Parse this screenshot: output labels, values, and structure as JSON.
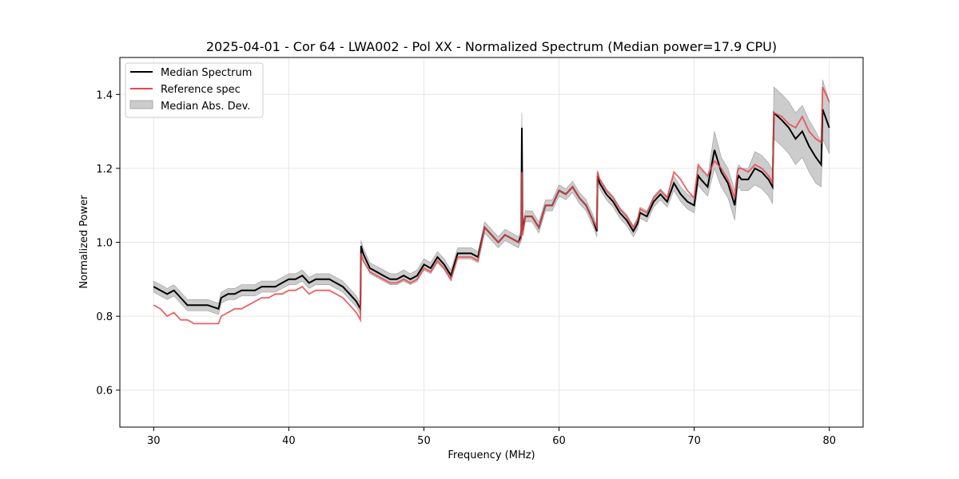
{
  "chart_data": {
    "type": "line",
    "title": "2025-04-01 - Cor 64 - LWA002 - Pol XX - Normalized Spectrum (Median power=17.9 CPU)",
    "xlabel": "Frequency (MHz)",
    "ylabel": "Normalized Power",
    "xlim": [
      27.5,
      82.5
    ],
    "ylim": [
      0.5,
      1.5
    ],
    "xticks": [
      30,
      40,
      50,
      60,
      70,
      80
    ],
    "yticks": [
      0.6,
      0.8,
      1.0,
      1.2,
      1.4
    ],
    "grid": true,
    "legend_position": "top-left",
    "legend": [
      "Median Spectrum",
      "Reference spec",
      "Median Abs. Dev."
    ],
    "colors": {
      "median": "#000000",
      "reference": "#e8474a",
      "mad_fill": "#b0b0b0",
      "overlap": "#7a0000"
    },
    "series": [
      {
        "name": "Median Spectrum",
        "x": [
          30.0,
          30.5,
          31.0,
          31.5,
          32.0,
          32.5,
          33.0,
          33.5,
          34.0,
          34.8,
          35.0,
          35.5,
          36.0,
          36.5,
          37.0,
          37.5,
          38.0,
          38.5,
          39.0,
          39.5,
          40.0,
          40.5,
          41.0,
          41.5,
          42.0,
          42.5,
          43.0,
          43.5,
          44.0,
          44.5,
          45.0,
          45.3,
          45.35,
          45.5,
          46.0,
          46.5,
          47.0,
          47.5,
          48.0,
          48.5,
          49.0,
          49.5,
          50.0,
          50.5,
          51.0,
          51.5,
          52.0,
          52.5,
          53.0,
          53.5,
          54.0,
          54.5,
          55.0,
          55.5,
          56.0,
          56.5,
          57.0,
          57.2,
          57.25,
          57.3,
          57.5,
          58.0,
          58.5,
          59.0,
          59.5,
          60.0,
          60.5,
          61.0,
          61.5,
          62.0,
          62.5,
          62.8,
          62.85,
          63.0,
          63.5,
          64.0,
          64.5,
          65.0,
          65.5,
          65.8,
          66.0,
          66.5,
          67.0,
          67.5,
          68.0,
          68.5,
          69.0,
          69.5,
          70.0,
          70.3,
          70.5,
          71.0,
          71.5,
          72.0,
          72.5,
          73.0,
          73.2,
          73.3,
          73.5,
          74.0,
          74.5,
          75.0,
          75.5,
          75.8,
          75.9,
          76.5,
          77.0,
          77.5,
          78.0,
          78.5,
          79.0,
          79.4,
          79.5,
          80.0
        ],
        "values": [
          0.88,
          0.87,
          0.86,
          0.87,
          0.85,
          0.83,
          0.83,
          0.83,
          0.83,
          0.82,
          0.85,
          0.86,
          0.86,
          0.87,
          0.87,
          0.87,
          0.88,
          0.88,
          0.88,
          0.89,
          0.9,
          0.9,
          0.91,
          0.89,
          0.9,
          0.9,
          0.9,
          0.89,
          0.88,
          0.86,
          0.84,
          0.82,
          0.99,
          0.97,
          0.93,
          0.92,
          0.91,
          0.9,
          0.9,
          0.91,
          0.9,
          0.91,
          0.94,
          0.93,
          0.96,
          0.94,
          0.91,
          0.97,
          0.97,
          0.97,
          0.96,
          1.04,
          1.02,
          1.0,
          1.02,
          1.01,
          1.0,
          1.02,
          1.31,
          1.03,
          1.07,
          1.07,
          1.04,
          1.1,
          1.1,
          1.14,
          1.13,
          1.15,
          1.12,
          1.1,
          1.06,
          1.03,
          1.18,
          1.16,
          1.13,
          1.11,
          1.08,
          1.06,
          1.03,
          1.05,
          1.08,
          1.07,
          1.11,
          1.13,
          1.11,
          1.16,
          1.13,
          1.11,
          1.1,
          1.18,
          1.17,
          1.15,
          1.25,
          1.19,
          1.16,
          1.1,
          1.17,
          1.18,
          1.17,
          1.17,
          1.2,
          1.19,
          1.17,
          1.15,
          1.35,
          1.33,
          1.31,
          1.28,
          1.3,
          1.26,
          1.23,
          1.21,
          1.36,
          1.31
        ]
      },
      {
        "name": "Reference spec",
        "x": [
          30.0,
          30.5,
          31.0,
          31.5,
          32.0,
          32.5,
          33.0,
          33.5,
          34.0,
          34.8,
          35.0,
          35.5,
          36.0,
          36.5,
          37.0,
          37.5,
          38.0,
          38.5,
          39.0,
          39.5,
          40.0,
          40.5,
          41.0,
          41.5,
          42.0,
          42.5,
          43.0,
          43.5,
          44.0,
          44.5,
          45.0,
          45.3,
          45.35,
          45.5,
          46.0,
          46.5,
          47.0,
          47.5,
          48.0,
          48.5,
          49.0,
          49.5,
          50.0,
          50.5,
          51.0,
          51.5,
          52.0,
          52.5,
          53.0,
          53.5,
          54.0,
          54.5,
          55.0,
          55.5,
          56.0,
          56.5,
          57.0,
          57.2,
          57.25,
          57.3,
          57.5,
          58.0,
          58.5,
          59.0,
          59.5,
          60.0,
          60.5,
          61.0,
          61.5,
          62.0,
          62.5,
          62.8,
          62.85,
          63.0,
          63.5,
          64.0,
          64.5,
          65.0,
          65.5,
          65.8,
          66.0,
          66.5,
          67.0,
          67.5,
          68.0,
          68.5,
          69.0,
          69.5,
          70.0,
          70.3,
          70.5,
          71.0,
          71.5,
          72.0,
          72.5,
          73.0,
          73.2,
          73.3,
          73.5,
          74.0,
          74.5,
          75.0,
          75.5,
          75.8,
          75.9,
          76.5,
          77.0,
          77.5,
          78.0,
          78.5,
          79.0,
          79.4,
          79.5,
          80.0
        ],
        "values": [
          0.83,
          0.82,
          0.8,
          0.81,
          0.79,
          0.79,
          0.78,
          0.78,
          0.78,
          0.78,
          0.8,
          0.81,
          0.82,
          0.82,
          0.83,
          0.84,
          0.85,
          0.85,
          0.86,
          0.86,
          0.87,
          0.87,
          0.88,
          0.86,
          0.87,
          0.87,
          0.87,
          0.86,
          0.85,
          0.83,
          0.81,
          0.79,
          0.97,
          0.95,
          0.92,
          0.91,
          0.9,
          0.89,
          0.89,
          0.9,
          0.89,
          0.9,
          0.93,
          0.92,
          0.95,
          0.93,
          0.9,
          0.96,
          0.96,
          0.96,
          0.95,
          1.04,
          1.02,
          1.0,
          1.02,
          1.01,
          1.0,
          1.01,
          1.19,
          1.02,
          1.07,
          1.07,
          1.04,
          1.1,
          1.1,
          1.14,
          1.13,
          1.15,
          1.12,
          1.1,
          1.06,
          1.04,
          1.19,
          1.17,
          1.14,
          1.12,
          1.09,
          1.07,
          1.04,
          1.06,
          1.09,
          1.08,
          1.12,
          1.14,
          1.12,
          1.19,
          1.17,
          1.14,
          1.12,
          1.21,
          1.2,
          1.18,
          1.22,
          1.2,
          1.17,
          1.12,
          1.19,
          1.2,
          1.2,
          1.19,
          1.21,
          1.2,
          1.18,
          1.16,
          1.35,
          1.34,
          1.32,
          1.31,
          1.34,
          1.3,
          1.28,
          1.27,
          1.42,
          1.38
        ]
      },
      {
        "name": "Median Abs. Dev.",
        "x": [
          30.0,
          30.5,
          31.0,
          31.5,
          32.0,
          32.5,
          33.0,
          33.5,
          34.0,
          34.8,
          35.0,
          35.5,
          36.0,
          36.5,
          37.0,
          37.5,
          38.0,
          38.5,
          39.0,
          39.5,
          40.0,
          40.5,
          41.0,
          41.5,
          42.0,
          42.5,
          43.0,
          43.5,
          44.0,
          44.5,
          45.0,
          45.3,
          45.35,
          45.5,
          46.0,
          46.5,
          47.0,
          47.5,
          48.0,
          48.5,
          49.0,
          49.5,
          50.0,
          50.5,
          51.0,
          51.5,
          52.0,
          52.5,
          53.0,
          53.5,
          54.0,
          54.5,
          55.0,
          55.5,
          56.0,
          56.5,
          57.0,
          57.2,
          57.25,
          57.3,
          57.5,
          58.0,
          58.5,
          59.0,
          59.5,
          60.0,
          60.5,
          61.0,
          61.5,
          62.0,
          62.5,
          62.8,
          62.85,
          63.0,
          63.5,
          64.0,
          64.5,
          65.0,
          65.5,
          65.8,
          66.0,
          66.5,
          67.0,
          67.5,
          68.0,
          68.5,
          69.0,
          69.5,
          70.0,
          70.3,
          70.5,
          71.0,
          71.5,
          72.0,
          72.5,
          73.0,
          73.2,
          73.3,
          73.5,
          74.0,
          74.5,
          75.0,
          75.5,
          75.8,
          75.9,
          76.5,
          77.0,
          77.5,
          78.0,
          78.5,
          79.0,
          79.4,
          79.5,
          80.0
        ],
        "lower": [
          0.865,
          0.855,
          0.845,
          0.855,
          0.835,
          0.815,
          0.815,
          0.815,
          0.815,
          0.805,
          0.835,
          0.845,
          0.845,
          0.855,
          0.855,
          0.855,
          0.865,
          0.865,
          0.865,
          0.875,
          0.885,
          0.885,
          0.895,
          0.875,
          0.885,
          0.885,
          0.885,
          0.875,
          0.865,
          0.845,
          0.825,
          0.805,
          0.975,
          0.955,
          0.915,
          0.905,
          0.895,
          0.885,
          0.885,
          0.895,
          0.885,
          0.895,
          0.925,
          0.915,
          0.945,
          0.925,
          0.895,
          0.955,
          0.955,
          0.955,
          0.945,
          1.025,
          1.005,
          0.985,
          1.005,
          0.995,
          0.985,
          1.005,
          1.19,
          1.015,
          1.055,
          1.055,
          1.025,
          1.085,
          1.085,
          1.125,
          1.115,
          1.135,
          1.105,
          1.085,
          1.045,
          1.015,
          1.165,
          1.145,
          1.115,
          1.095,
          1.065,
          1.045,
          1.015,
          1.035,
          1.065,
          1.055,
          1.095,
          1.115,
          1.095,
          1.14,
          1.11,
          1.09,
          1.08,
          1.155,
          1.145,
          1.125,
          1.2,
          1.15,
          1.12,
          1.06,
          1.14,
          1.15,
          1.14,
          1.14,
          1.155,
          1.145,
          1.125,
          1.105,
          1.28,
          1.26,
          1.24,
          1.21,
          1.23,
          1.19,
          1.16,
          1.15,
          1.28,
          1.24
        ],
        "upper": [
          0.895,
          0.885,
          0.875,
          0.885,
          0.865,
          0.845,
          0.845,
          0.845,
          0.845,
          0.835,
          0.865,
          0.875,
          0.875,
          0.885,
          0.885,
          0.885,
          0.895,
          0.895,
          0.895,
          0.905,
          0.915,
          0.915,
          0.925,
          0.905,
          0.915,
          0.915,
          0.915,
          0.905,
          0.895,
          0.875,
          0.855,
          0.835,
          1.005,
          0.985,
          0.945,
          0.935,
          0.925,
          0.915,
          0.915,
          0.925,
          0.915,
          0.925,
          0.955,
          0.945,
          0.975,
          0.955,
          0.925,
          0.985,
          0.985,
          0.985,
          0.975,
          1.055,
          1.035,
          1.015,
          1.035,
          1.025,
          1.015,
          1.035,
          1.35,
          1.045,
          1.085,
          1.085,
          1.055,
          1.115,
          1.115,
          1.155,
          1.145,
          1.165,
          1.135,
          1.115,
          1.075,
          1.045,
          1.195,
          1.175,
          1.145,
          1.125,
          1.095,
          1.075,
          1.045,
          1.065,
          1.095,
          1.085,
          1.125,
          1.145,
          1.125,
          1.18,
          1.15,
          1.13,
          1.12,
          1.205,
          1.195,
          1.175,
          1.3,
          1.23,
          1.2,
          1.14,
          1.2,
          1.21,
          1.2,
          1.2,
          1.245,
          1.235,
          1.215,
          1.195,
          1.42,
          1.4,
          1.38,
          1.35,
          1.37,
          1.33,
          1.3,
          1.27,
          1.44,
          1.38
        ]
      }
    ]
  }
}
